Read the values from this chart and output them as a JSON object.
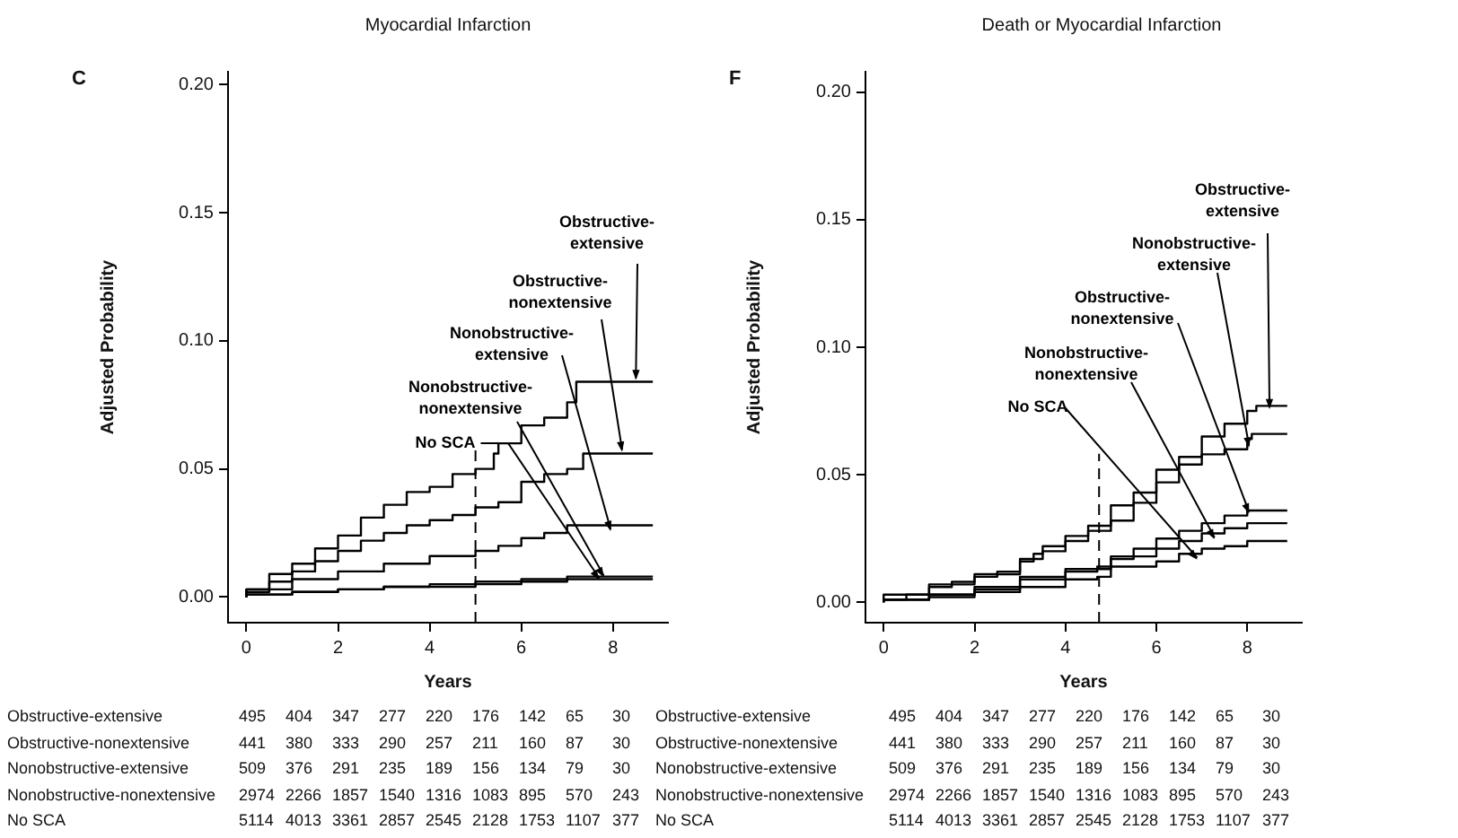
{
  "chart_data": [
    {
      "type": "step",
      "title": "Myocardial Infarction",
      "xlabel": "Years",
      "ylabel": "Adjusted Probability",
      "xlim": [
        -0.4,
        9.2
      ],
      "ylim": [
        -0.01,
        0.205
      ],
      "xticks": [
        0,
        2,
        4,
        6,
        8
      ],
      "yticks": [
        {
          "value": 0,
          "label": "0.00"
        },
        {
          "value": 0.05,
          "label": "0.05"
        },
        {
          "value": 0.1,
          "label": "0.10"
        },
        {
          "value": 0.15,
          "label": "0.15"
        },
        {
          "value": 0.2,
          "label": "0.20"
        }
      ],
      "ref_lines": [
        {
          "axis": "x",
          "value": 5,
          "line_style": "dashed",
          "color": "#000000"
        }
      ],
      "series": [
        {
          "name": "Obstructive-extensive",
          "color": "#000000",
          "x": [
            0,
            0.5,
            1,
            1.5,
            2,
            2.5,
            3,
            3.5,
            4,
            4.5,
            5,
            5.4,
            5.5,
            6,
            6.5,
            7,
            7.2,
            8,
            8.87
          ],
          "values": [
            0,
            0.003,
            0.009,
            0.013,
            0.019,
            0.024,
            0.031,
            0.036,
            0.041,
            0.043,
            0.048,
            0.05,
            0.056,
            0.06,
            0.067,
            0.07,
            0.076,
            0.084,
            0.084
          ]
        },
        {
          "name": "Obstructive-nonextensive",
          "color": "#000000",
          "x": [
            0,
            0.5,
            1,
            1.5,
            2,
            2.5,
            3,
            3.5,
            4,
            4.5,
            5,
            5.5,
            6,
            6.5,
            7,
            7.35,
            8.07,
            8.87
          ],
          "values": [
            0,
            0.002,
            0.006,
            0.01,
            0.014,
            0.018,
            0.022,
            0.025,
            0.028,
            0.03,
            0.032,
            0.035,
            0.037,
            0.045,
            0.048,
            0.05,
            0.056,
            0.056
          ]
        },
        {
          "name": "Nonobstructive-extensive",
          "color": "#000000",
          "x": [
            0,
            1,
            2,
            3,
            4,
            5,
            5.5,
            6,
            6.5,
            7,
            8,
            8.87
          ],
          "values": [
            0,
            0.003,
            0.007,
            0.01,
            0.013,
            0.016,
            0.018,
            0.02,
            0.023,
            0.025,
            0.028,
            0.028
          ]
        },
        {
          "name": "Nonobstructive-nonextensive",
          "color": "#000000",
          "x": [
            0,
            1,
            2,
            3,
            4,
            5,
            6,
            7,
            8,
            8.87
          ],
          "values": [
            0,
            0.001,
            0.002,
            0.003,
            0.004,
            0.005,
            0.006,
            0.007,
            0.008,
            0.008
          ]
        },
        {
          "name": "No SCA",
          "color": "#000000",
          "x": [
            0,
            1,
            2,
            3,
            4,
            5,
            6,
            7,
            8,
            8.87
          ],
          "values": [
            0,
            0.001,
            0.002,
            0.003,
            0.004,
            0.004,
            0.005,
            0.006,
            0.007,
            0.007
          ]
        }
      ],
      "annotations": [
        "C",
        "Obstructive-extensive 495 404 347 277 220 176 142 65 30",
        "Obstructive-nonextensive 441 380 333 290 257 211 160 87 30",
        "Nonobstructive-extensive 509 376 291 235 189 156 134 79 30",
        "Nonobstructive-nonextensive 2974 2266 1857 1540 1316 1083 895 570 243",
        "No SCA 5114 4013 3361 2857 2545 2128 1753 1107 377"
      ]
    },
    {
      "type": "step",
      "title": "Death or Myocardial Infarction",
      "xlabel": "Years",
      "ylabel": "Adjusted Probability",
      "xlim": [
        -0.4,
        9.2
      ],
      "ylim": [
        -0.008,
        0.208
      ],
      "xticks": [
        0,
        2,
        4,
        6,
        8
      ],
      "yticks": [
        {
          "value": 0,
          "label": "0.00"
        },
        {
          "value": 0.05,
          "label": "0.05"
        },
        {
          "value": 0.1,
          "label": "0.10"
        },
        {
          "value": 0.15,
          "label": "0.15"
        },
        {
          "value": 0.2,
          "label": "0.20"
        }
      ],
      "ref_lines": [
        {
          "axis": "x",
          "value": 4.74,
          "line_style": "dashed",
          "color": "#000000"
        }
      ],
      "series": [
        {
          "name": "Obstructive-extensive",
          "color": "#000000",
          "x": [
            0,
            0.5,
            1,
            1.5,
            2,
            2.5,
            3,
            3.3,
            3.5,
            4,
            4.5,
            5,
            5.5,
            6,
            6.5,
            7,
            7.5,
            8,
            8.2,
            8.5,
            8.88
          ],
          "values": [
            0,
            0.001,
            0.003,
            0.006,
            0.008,
            0.01,
            0.012,
            0.016,
            0.019,
            0.022,
            0.026,
            0.03,
            0.038,
            0.043,
            0.052,
            0.057,
            0.065,
            0.07,
            0.075,
            0.077,
            0.077
          ]
        },
        {
          "name": "Nonobstructive-extensive",
          "color": "#000000",
          "x": [
            0,
            1,
            2,
            3,
            3.5,
            4,
            4.5,
            5,
            5.5,
            6,
            6.5,
            7,
            7.5,
            8,
            8.1,
            8.88
          ],
          "values": [
            0,
            0.003,
            0.007,
            0.011,
            0.017,
            0.02,
            0.024,
            0.028,
            0.032,
            0.039,
            0.047,
            0.054,
            0.058,
            0.06,
            0.064,
            0.066
          ]
        },
        {
          "name": "Obstructive-nonextensive",
          "color": "#000000",
          "x": [
            0,
            1,
            2,
            3,
            4,
            4.7,
            5,
            5.5,
            6,
            6.5,
            7,
            7.5,
            8,
            8.88
          ],
          "values": [
            0,
            0.001,
            0.003,
            0.006,
            0.01,
            0.013,
            0.014,
            0.017,
            0.021,
            0.025,
            0.028,
            0.031,
            0.034,
            0.036
          ]
        },
        {
          "name": "Nonobstructive-nonextensive",
          "color": "#000000",
          "x": [
            0,
            1,
            2,
            3,
            4,
            4.7,
            5,
            6,
            6.5,
            7,
            7.5,
            8,
            8.88
          ],
          "values": [
            0,
            0.001,
            0.003,
            0.005,
            0.009,
            0.012,
            0.013,
            0.018,
            0.021,
            0.024,
            0.027,
            0.029,
            0.031
          ]
        },
        {
          "name": "No SCA",
          "color": "#000000",
          "x": [
            0,
            1,
            2,
            3,
            4,
            4.7,
            5,
            6,
            6.5,
            7,
            7.5,
            8,
            8.88
          ],
          "values": [
            0,
            0.001,
            0.002,
            0.004,
            0.006,
            0.009,
            0.01,
            0.014,
            0.016,
            0.019,
            0.021,
            0.022,
            0.024
          ]
        }
      ],
      "annotations": [
        "F",
        "Obstructive-extensive 495 404 347 277 220 176 142 65 30",
        "Obstructive-nonextensive 441 380 333 290 257 211 160 87 30",
        "Nonobstructive-extensive 509 376 291 235 189 156 134 79 30",
        "Nonobstructive-nonextensive 2974 2266 1857 1540 1316 1083 895 570 243",
        "No SCA 5114 4013 3361 2857 2545 2128 1753 1107 377"
      ]
    }
  ]
}
